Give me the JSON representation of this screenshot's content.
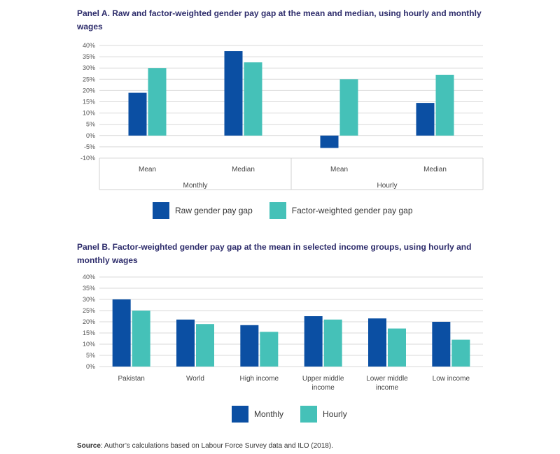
{
  "chart_data": [
    {
      "type": "bar",
      "title": "Panel A. Raw and factor-weighted gender pay gap at the mean and median, using hourly and monthly wages",
      "groups": [
        "Monthly",
        "Hourly"
      ],
      "categories": [
        "Mean",
        "Median",
        "Mean",
        "Median"
      ],
      "category_groups": [
        "Monthly",
        "Monthly",
        "Hourly",
        "Hourly"
      ],
      "series": [
        {
          "name": "Raw gender pay gap",
          "color": "#0b4fa3",
          "values": [
            19,
            37.5,
            -5.5,
            14.5
          ]
        },
        {
          "name": "Factor-weighted gender pay gap",
          "color": "#45c1b8",
          "values": [
            30,
            32.5,
            25,
            27
          ]
        }
      ],
      "ylim": [
        -10,
        40
      ],
      "yticks": [
        "-10%",
        "-5%",
        "0%",
        "5%",
        "10%",
        "15%",
        "20%",
        "25%",
        "30%",
        "35%",
        "40%"
      ],
      "grid": true,
      "legend": "bottom"
    },
    {
      "type": "bar",
      "title": "Panel B. Factor-weighted gender pay gap at the mean in selected income groups, using hourly and monthly wages",
      "categories": [
        "Pakistan",
        "World",
        "High income",
        "Upper middle income",
        "Lower middle income",
        "Low income"
      ],
      "category_lines": [
        [
          "Pakistan"
        ],
        [
          "World"
        ],
        [
          "High income"
        ],
        [
          "Upper middle",
          "income"
        ],
        [
          "Lower middle",
          "income"
        ],
        [
          "Low income"
        ]
      ],
      "series": [
        {
          "name": "Monthly",
          "color": "#0b4fa3",
          "values": [
            30,
            21,
            18.5,
            22.5,
            21.5,
            20
          ]
        },
        {
          "name": "Hourly",
          "color": "#45c1b8",
          "values": [
            25,
            19,
            15.5,
            21,
            17,
            12
          ]
        }
      ],
      "ylim": [
        0,
        40
      ],
      "yticks": [
        "0%",
        "5%",
        "10%",
        "15%",
        "20%",
        "25%",
        "30%",
        "35%",
        "40%"
      ],
      "grid": true,
      "legend": "bottom"
    }
  ],
  "source": {
    "label": "Source",
    "text": ": Author’s calculations based on Labour Force Survey data and ILO (2018)."
  }
}
